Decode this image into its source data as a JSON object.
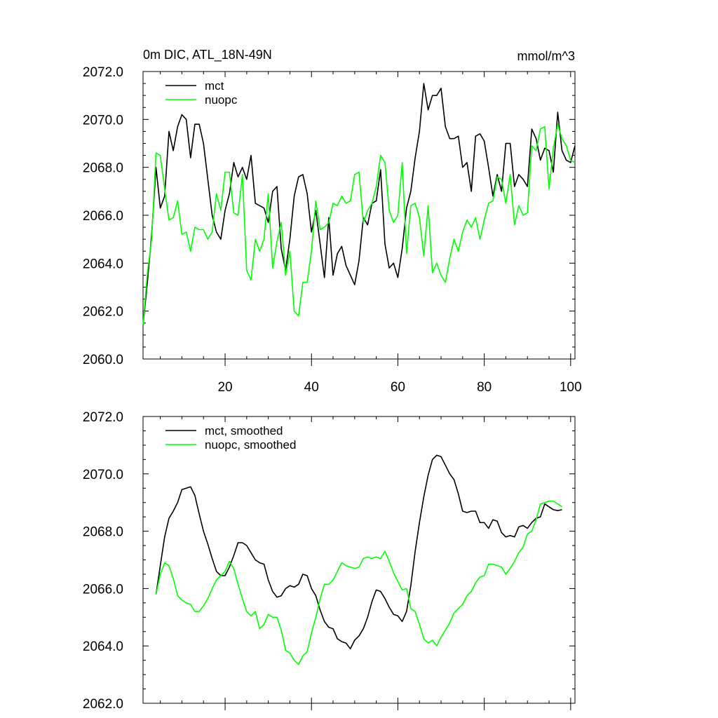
{
  "title_left": "0m DIC, ATL_18N-49N",
  "title_right": "mmol/m^3",
  "chart_data": [
    {
      "type": "line",
      "ylim": [
        2060,
        2072
      ],
      "xlim": [
        1,
        101
      ],
      "ytick_labels": [
        "2060.0",
        "2062.0",
        "2064.0",
        "2066.0",
        "2068.0",
        "2070.0",
        "2072.0"
      ],
      "xtick_labels": [
        "20",
        "40",
        "60",
        "80",
        "100"
      ],
      "legend_position": "top-left",
      "series": [
        {
          "name": "mct",
          "color": "#000000",
          "x": [
            1,
            2,
            3,
            4,
            5,
            6,
            7,
            8,
            9,
            10,
            11,
            12,
            13,
            14,
            15,
            16,
            17,
            18,
            19,
            20,
            21,
            22,
            23,
            24,
            25,
            26,
            27,
            28,
            29,
            30,
            31,
            32,
            33,
            34,
            35,
            36,
            37,
            38,
            39,
            40,
            41,
            42,
            43,
            44,
            45,
            46,
            47,
            48,
            49,
            50,
            51,
            52,
            53,
            54,
            55,
            56,
            57,
            58,
            59,
            60,
            61,
            62,
            63,
            64,
            65,
            66,
            67,
            68,
            69,
            70,
            71,
            72,
            73,
            74,
            75,
            76,
            77,
            78,
            79,
            80,
            81,
            82,
            83,
            84,
            85,
            86,
            87,
            88,
            89,
            90,
            91,
            92,
            93,
            94,
            95,
            96,
            97,
            98,
            99,
            100,
            101
          ],
          "values": [
            2061.4,
            2063.2,
            2065.2,
            2068.0,
            2066.3,
            2066.8,
            2069.5,
            2068.7,
            2069.7,
            2070.2,
            2070.0,
            2068.4,
            2069.8,
            2069.8,
            2069.0,
            2067.5,
            2066.0,
            2065.3,
            2065.0,
            2066.2,
            2066.9,
            2068.2,
            2067.6,
            2068.0,
            2067.5,
            2068.5,
            2066.5,
            2066.4,
            2066.3,
            2065.7,
            2067.0,
            2067.2,
            2064.6,
            2063.7,
            2065.0,
            2066.8,
            2067.6,
            2067.7,
            2066.9,
            2065.3,
            2066.2,
            2064.8,
            2063.4,
            2065.9,
            2063.5,
            2064.4,
            2064.7,
            2063.9,
            2063.5,
            2063.1,
            2064.1,
            2065.9,
            2065.6,
            2066.5,
            2066.6,
            2067.9,
            2064.8,
            2063.8,
            2064.0,
            2063.4,
            2064.6,
            2066.3,
            2067.0,
            2068.4,
            2069.5,
            2071.5,
            2070.4,
            2071.0,
            2071.0,
            2071.3,
            2069.7,
            2069.2,
            2069.2,
            2069.3,
            2068.0,
            2068.2,
            2067.0,
            2069.3,
            2069.4,
            2069.1,
            2068.0,
            2066.8,
            2067.7,
            2067.0,
            2069.0,
            2069.0,
            2067.2,
            2067.7,
            2067.5,
            2067.2,
            2069.6,
            2069.2,
            2068.3,
            2068.8,
            2068.7,
            2067.8,
            2070.3,
            2068.7,
            2068.3,
            2068.2,
            2068.9
          ]
        },
        {
          "name": "nuopc",
          "color": "#00ff00",
          "x": [
            1,
            2,
            3,
            4,
            5,
            6,
            7,
            8,
            9,
            10,
            11,
            12,
            13,
            14,
            15,
            16,
            17,
            18,
            19,
            20,
            21,
            22,
            23,
            24,
            25,
            26,
            27,
            28,
            29,
            30,
            31,
            32,
            33,
            34,
            35,
            36,
            37,
            38,
            39,
            40,
            41,
            42,
            43,
            44,
            45,
            46,
            47,
            48,
            49,
            50,
            51,
            52,
            53,
            54,
            55,
            56,
            57,
            58,
            59,
            60,
            61,
            62,
            63,
            64,
            65,
            66,
            67,
            68,
            69,
            70,
            71,
            72,
            73,
            74,
            75,
            76,
            77,
            78,
            79,
            80,
            81,
            82,
            83,
            84,
            85,
            86,
            87,
            88,
            89,
            90,
            91,
            92,
            93,
            94,
            95,
            96,
            97,
            98,
            99,
            100,
            101
          ],
          "values": [
            2061.4,
            2063.6,
            2065.0,
            2068.6,
            2068.5,
            2067.1,
            2065.8,
            2065.9,
            2066.6,
            2065.2,
            2065.3,
            2064.5,
            2065.5,
            2065.4,
            2065.4,
            2065.0,
            2065.3,
            2066.9,
            2066.2,
            2067.8,
            2067.8,
            2066.1,
            2066.0,
            2067.7,
            2063.7,
            2063.3,
            2065.0,
            2064.5,
            2065.0,
            2066.9,
            2063.8,
            2064.9,
            2065.7,
            2063.5,
            2064.5,
            2062.0,
            2061.8,
            2063.2,
            2063.2,
            2064.5,
            2066.6,
            2065.4,
            2065.5,
            2065.7,
            2066.5,
            2066.4,
            2066.8,
            2066.5,
            2066.6,
            2067.7,
            2067.8,
            2065.7,
            2066.2,
            2066.5,
            2067.2,
            2068.5,
            2068.2,
            2066.2,
            2065.7,
            2066.0,
            2068.2,
            2064.4,
            2066.4,
            2066.5,
            2065.9,
            2064.3,
            2066.4,
            2063.6,
            2064.0,
            2063.5,
            2063.2,
            2064.2,
            2065.0,
            2064.5,
            2065.3,
            2065.8,
            2065.5,
            2065.9,
            2065.0,
            2065.8,
            2066.5,
            2066.6,
            2067.6,
            2067.5,
            2066.5,
            2067.7,
            2065.6,
            2066.4,
            2066.0,
            2066.1,
            2068.9,
            2068.7,
            2069.6,
            2069.7,
            2067.1,
            2068.8,
            2069.8,
            2069.2,
            2068.9,
            2068.3,
            2068.2
          ]
        }
      ]
    },
    {
      "type": "line",
      "ylim": [
        2062,
        2072
      ],
      "xlim": [
        1,
        101
      ],
      "ytick_labels": [
        "2062.0",
        "2064.0",
        "2066.0",
        "2068.0",
        "2070.0",
        "2072.0"
      ],
      "xtick_labels": [],
      "legend_position": "top-left",
      "series": [
        {
          "name": "mct, smoothed",
          "color": "#000000",
          "x": [
            4,
            5,
            6,
            7,
            8,
            9,
            10,
            11,
            12,
            13,
            14,
            15,
            16,
            17,
            18,
            19,
            20,
            21,
            22,
            23,
            24,
            25,
            26,
            27,
            28,
            29,
            30,
            31,
            32,
            33,
            34,
            35,
            36,
            37,
            38,
            39,
            40,
            41,
            42,
            43,
            44,
            45,
            46,
            47,
            48,
            49,
            50,
            51,
            52,
            53,
            54,
            55,
            56,
            57,
            58,
            59,
            60,
            61,
            62,
            63,
            64,
            65,
            66,
            67,
            68,
            69,
            70,
            71,
            72,
            73,
            74,
            75,
            76,
            77,
            78,
            79,
            80,
            81,
            82,
            83,
            84,
            85,
            86,
            87,
            88,
            89,
            90,
            91,
            92,
            93,
            94,
            95,
            96,
            97,
            98
          ],
          "values": [
            2065.8,
            2066.8,
            2067.8,
            2068.45,
            2068.7,
            2069.0,
            2069.45,
            2069.5,
            2069.55,
            2069.25,
            2068.6,
            2068.0,
            2067.55,
            2067.05,
            2066.6,
            2066.45,
            2066.45,
            2066.75,
            2067.15,
            2067.6,
            2067.6,
            2067.5,
            2067.25,
            2067.0,
            2066.9,
            2066.85,
            2066.3,
            2065.9,
            2065.7,
            2065.75,
            2066.0,
            2066.1,
            2066.05,
            2066.15,
            2066.5,
            2066.45,
            2066.0,
            2065.75,
            2065.25,
            2064.85,
            2064.65,
            2064.6,
            2064.25,
            2064.15,
            2064.1,
            2063.9,
            2064.2,
            2064.35,
            2064.6,
            2065.0,
            2065.55,
            2065.95,
            2065.9,
            2065.65,
            2065.35,
            2065.1,
            2065.05,
            2064.85,
            2065.2,
            2066.1,
            2067.3,
            2068.3,
            2069.2,
            2069.95,
            2070.5,
            2070.65,
            2070.6,
            2070.3,
            2070.0,
            2069.8,
            2069.3,
            2068.7,
            2068.65,
            2068.7,
            2068.7,
            2068.3,
            2068.3,
            2068.1,
            2068.4,
            2068.35,
            2067.95,
            2067.8,
            2067.85,
            2067.8,
            2068.15,
            2068.2,
            2068.1,
            2068.3,
            2068.45,
            2068.5,
            2068.95,
            2068.85,
            2068.75,
            2068.72,
            2068.75
          ]
        },
        {
          "name": "nuopc, smoothed",
          "color": "#00ff00",
          "x": [
            4,
            5,
            6,
            7,
            8,
            9,
            10,
            11,
            12,
            13,
            14,
            15,
            16,
            17,
            18,
            19,
            20,
            21,
            22,
            23,
            24,
            25,
            26,
            27,
            28,
            29,
            30,
            31,
            32,
            33,
            34,
            35,
            36,
            37,
            38,
            39,
            40,
            41,
            42,
            43,
            44,
            45,
            46,
            47,
            48,
            49,
            50,
            51,
            52,
            53,
            54,
            55,
            56,
            57,
            58,
            59,
            60,
            61,
            62,
            63,
            64,
            65,
            66,
            67,
            68,
            69,
            70,
            71,
            72,
            73,
            74,
            75,
            76,
            77,
            78,
            79,
            80,
            81,
            82,
            83,
            84,
            85,
            86,
            87,
            88,
            89,
            90,
            91,
            92,
            93,
            94,
            95,
            96,
            97,
            98
          ],
          "values": [
            2065.8,
            2066.5,
            2066.9,
            2066.8,
            2066.35,
            2065.75,
            2065.6,
            2065.5,
            2065.45,
            2065.2,
            2065.2,
            2065.4,
            2065.65,
            2066.0,
            2066.3,
            2066.45,
            2066.6,
            2066.95,
            2066.7,
            2066.15,
            2065.65,
            2065.2,
            2065.05,
            2065.2,
            2064.6,
            2064.75,
            2065.1,
            2065.0,
            2065.0,
            2064.55,
            2063.85,
            2063.75,
            2063.5,
            2063.35,
            2063.65,
            2063.8,
            2064.45,
            2065.0,
            2065.65,
            2066.15,
            2066.15,
            2066.3,
            2066.6,
            2066.9,
            2066.8,
            2066.75,
            2066.7,
            2066.75,
            2067.05,
            2067.1,
            2067.05,
            2067.1,
            2067.05,
            2067.3,
            2066.95,
            2066.55,
            2066.25,
            2065.95,
            2066.0,
            2065.3,
            2065.2,
            2064.75,
            2064.25,
            2064.1,
            2064.2,
            2064.0,
            2064.3,
            2064.55,
            2064.8,
            2065.15,
            2065.3,
            2065.45,
            2065.75,
            2065.9,
            2066.2,
            2066.4,
            2066.45,
            2066.85,
            2066.85,
            2066.8,
            2066.75,
            2066.5,
            2066.7,
            2066.95,
            2067.25,
            2067.45,
            2067.9,
            2068.0,
            2068.4,
            2068.95,
            2069.0,
            2069.05,
            2069.05,
            2068.95,
            2068.85
          ]
        }
      ]
    }
  ]
}
